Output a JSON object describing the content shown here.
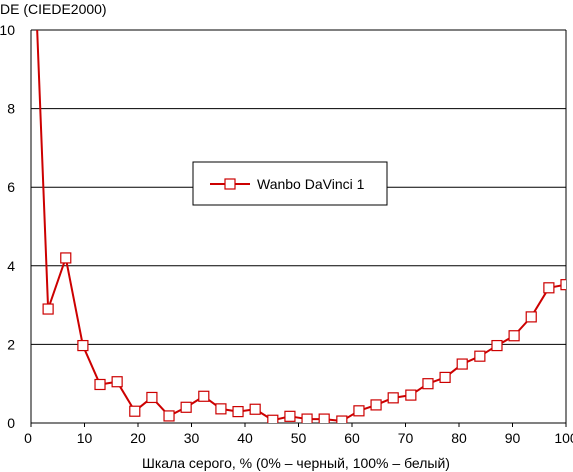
{
  "chart_data": {
    "type": "line",
    "ylabel": "DE (CIEDE2000)",
    "xlabel": "Шкала серого, % (0% – черный, 100% – белый)",
    "xlim": [
      0,
      100
    ],
    "ylim": [
      0,
      10
    ],
    "xticks": [
      0,
      10,
      20,
      30,
      40,
      50,
      60,
      70,
      80,
      90,
      100
    ],
    "yticks": [
      0,
      2,
      4,
      6,
      8,
      10
    ],
    "grid": "horizontal",
    "legend_position": "center",
    "series": [
      {
        "name": "Wanbo DaVinci 1",
        "color": "#cc0000",
        "marker": "square",
        "x": [
          0,
          3.2,
          6.5,
          9.7,
          12.9,
          16.1,
          19.4,
          22.6,
          25.8,
          29.0,
          32.3,
          35.5,
          38.7,
          41.9,
          45.2,
          48.4,
          51.6,
          54.8,
          58.1,
          61.3,
          64.5,
          67.7,
          71.0,
          74.2,
          77.4,
          80.6,
          83.9,
          87.1,
          90.3,
          93.5,
          96.8,
          100
        ],
        "values": [
          14.0,
          2.9,
          4.2,
          1.97,
          0.98,
          1.05,
          0.3,
          0.65,
          0.18,
          0.4,
          0.68,
          0.36,
          0.29,
          0.35,
          0.07,
          0.17,
          0.1,
          0.1,
          0.05,
          0.31,
          0.46,
          0.64,
          0.71,
          1.0,
          1.16,
          1.5,
          1.7,
          1.97,
          2.22,
          2.7,
          3.44,
          3.52
        ]
      }
    ]
  }
}
